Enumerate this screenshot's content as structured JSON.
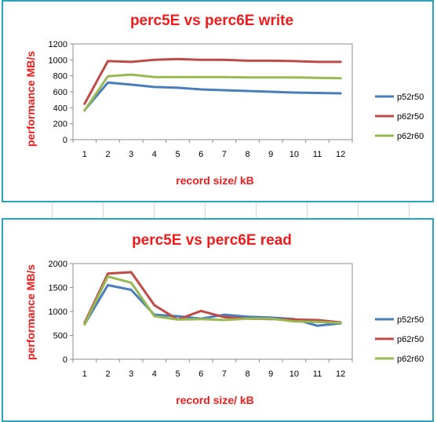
{
  "chart_data": [
    {
      "type": "line",
      "title": "perc5E vs perc6E write",
      "xlabel": "record size/ kB",
      "ylabel": "performance MB/s",
      "categories": [
        "1",
        "2",
        "3",
        "4",
        "5",
        "6",
        "7",
        "8",
        "9",
        "10",
        "11",
        "12"
      ],
      "ylim": [
        0,
        1200
      ],
      "yticks": [
        0,
        200,
        400,
        600,
        800,
        1000,
        1200
      ],
      "grid": false,
      "legend_position": "right",
      "series": [
        {
          "name": "p52r50",
          "color": "#4a7ebb",
          "values": [
            370,
            715,
            690,
            660,
            650,
            630,
            620,
            610,
            600,
            590,
            585,
            580
          ]
        },
        {
          "name": "p62r50",
          "color": "#be4b48",
          "values": [
            450,
            985,
            975,
            1000,
            1010,
            1000,
            1000,
            990,
            990,
            985,
            975,
            975
          ]
        },
        {
          "name": "p62r60",
          "color": "#98b954",
          "values": [
            365,
            795,
            815,
            785,
            785,
            785,
            785,
            780,
            780,
            780,
            775,
            770
          ]
        }
      ]
    },
    {
      "type": "line",
      "title": "perc5E vs perc6E read",
      "xlabel": "record size/ kB",
      "ylabel": "performance MB/s",
      "categories": [
        "1",
        "2",
        "3",
        "4",
        "5",
        "6",
        "7",
        "8",
        "9",
        "10",
        "11",
        "12"
      ],
      "ylim": [
        0,
        2000
      ],
      "yticks": [
        0,
        500,
        1000,
        1500,
        2000
      ],
      "grid": false,
      "legend_position": "right",
      "series": [
        {
          "name": "p52r50",
          "color": "#4a7ebb",
          "values": [
            730,
            1550,
            1450,
            930,
            900,
            850,
            930,
            890,
            870,
            840,
            700,
            750
          ]
        },
        {
          "name": "p62r50",
          "color": "#be4b48",
          "values": [
            760,
            1790,
            1820,
            1130,
            830,
            1010,
            880,
            850,
            840,
            830,
            820,
            770
          ]
        },
        {
          "name": "p62r60",
          "color": "#98b954",
          "values": [
            730,
            1730,
            1600,
            900,
            830,
            840,
            820,
            850,
            850,
            790,
            780,
            760
          ]
        }
      ]
    }
  ]
}
